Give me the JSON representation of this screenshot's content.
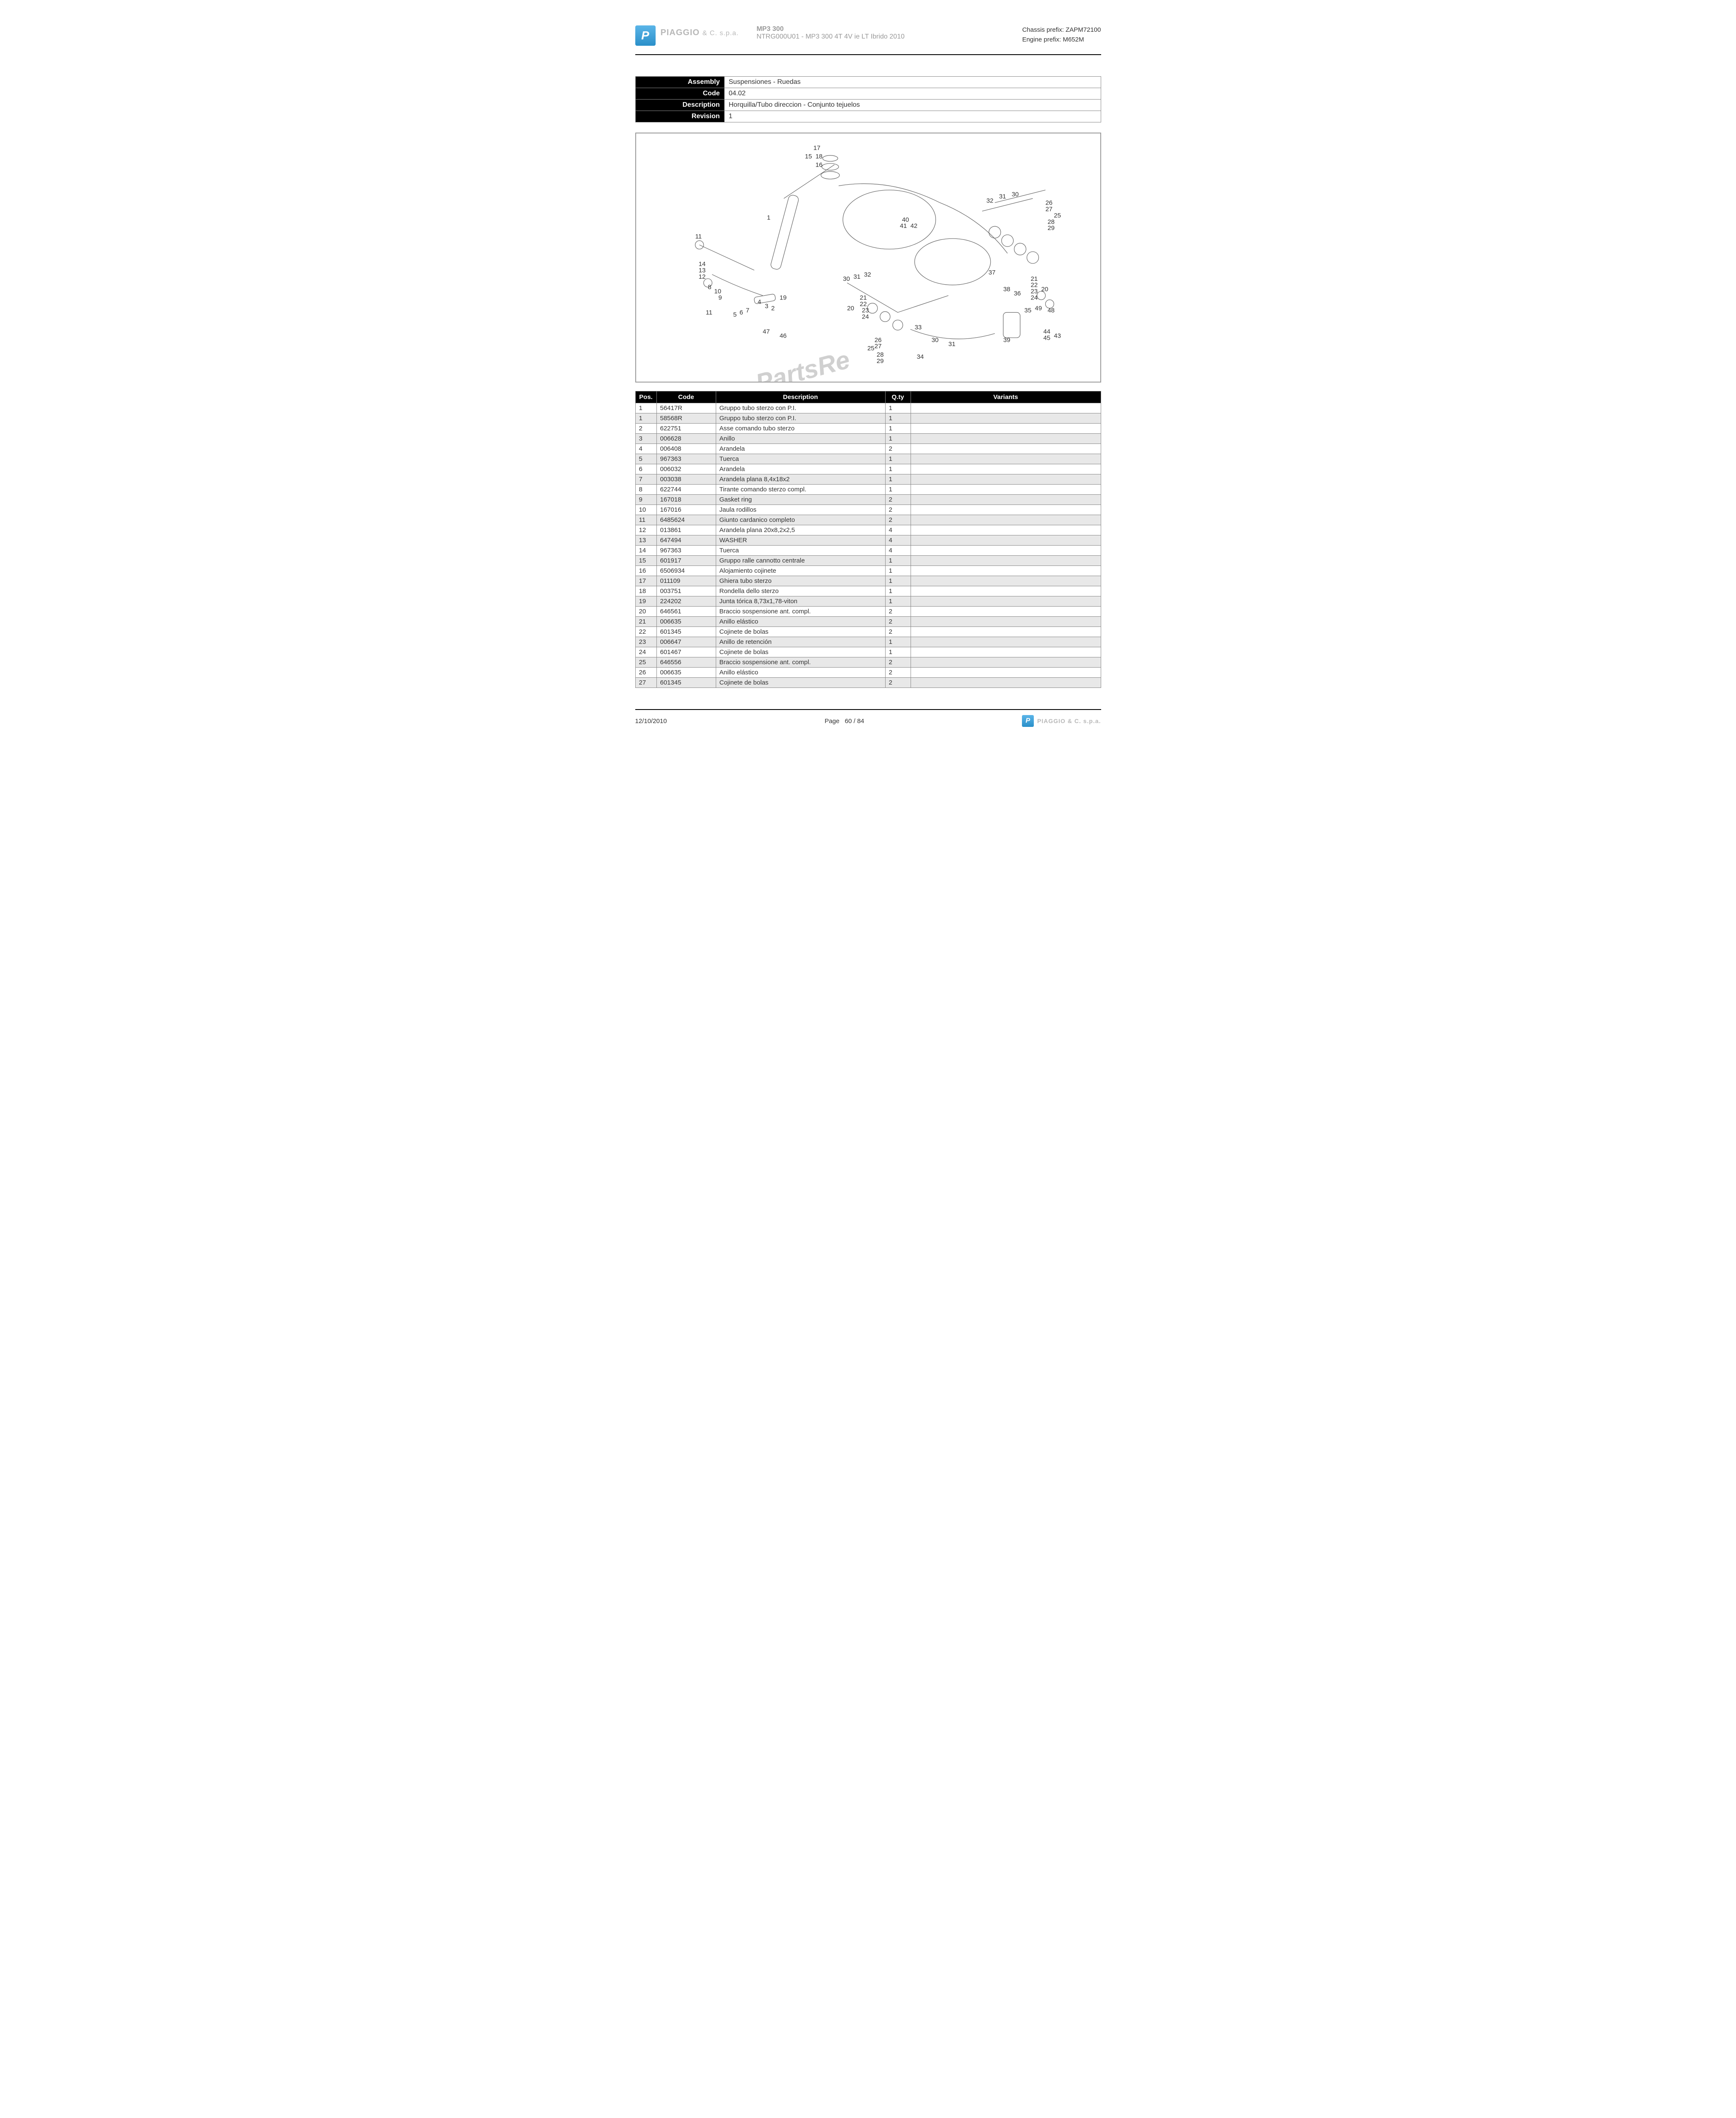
{
  "header": {
    "brand": "PIAGGIO",
    "brand_suffix": "& C. s.p.a.",
    "model_title": "MP3 300",
    "model_sub": "NTRG000U01 - MP3 300 4T 4V ie LT Ibrido 2010",
    "chassis_label": "Chassis prefix:",
    "chassis_value": "ZAPM72100",
    "engine_label": "Engine prefix:",
    "engine_value": "M652M"
  },
  "info": {
    "assembly_label": "Assembly",
    "assembly_value": "Suspensiones - Ruedas",
    "code_label": "Code",
    "code_value": "04.02",
    "description_label": "Description",
    "description_value": "Horquilla/Tubo direccion - Conjunto tejuelos",
    "revision_label": "Revision",
    "revision_value": "1"
  },
  "diagram": {
    "watermark": "PartsRe",
    "callouts": [
      "1",
      "2",
      "3",
      "4",
      "5",
      "6",
      "7",
      "8",
      "9",
      "10",
      "11",
      "12",
      "13",
      "14",
      "15",
      "16",
      "17",
      "18",
      "19",
      "20",
      "21",
      "22",
      "23",
      "24",
      "25",
      "26",
      "27",
      "28",
      "29",
      "30",
      "31",
      "32",
      "33",
      "34",
      "35",
      "36",
      "37",
      "38",
      "39",
      "40",
      "41",
      "42",
      "43",
      "44",
      "45",
      "46",
      "47",
      "48",
      "49"
    ]
  },
  "parts_table": {
    "columns": {
      "pos": "Pos.",
      "code": "Code",
      "description": "Description",
      "qty": "Q.ty",
      "variants": "Variants"
    },
    "rows": [
      {
        "pos": "1",
        "code": "56417R",
        "description": "Gruppo tubo sterzo con P.I.",
        "qty": "1",
        "variants": ""
      },
      {
        "pos": "1",
        "code": "58568R",
        "description": "Gruppo tubo sterzo con P.I.",
        "qty": "1",
        "variants": ""
      },
      {
        "pos": "2",
        "code": "622751",
        "description": "Asse comando tubo sterzo",
        "qty": "1",
        "variants": ""
      },
      {
        "pos": "3",
        "code": "006628",
        "description": "Anillo",
        "qty": "1",
        "variants": ""
      },
      {
        "pos": "4",
        "code": "006408",
        "description": "Arandela",
        "qty": "2",
        "variants": ""
      },
      {
        "pos": "5",
        "code": "967363",
        "description": "Tuerca",
        "qty": "1",
        "variants": ""
      },
      {
        "pos": "6",
        "code": "006032",
        "description": "Arandela",
        "qty": "1",
        "variants": ""
      },
      {
        "pos": "7",
        "code": "003038",
        "description": "Arandela plana 8,4x18x2",
        "qty": "1",
        "variants": ""
      },
      {
        "pos": "8",
        "code": "622744",
        "description": "Tirante comando sterzo compl.",
        "qty": "1",
        "variants": ""
      },
      {
        "pos": "9",
        "code": "167018",
        "description": "Gasket ring",
        "qty": "2",
        "variants": ""
      },
      {
        "pos": "10",
        "code": "167016",
        "description": "Jaula rodillos",
        "qty": "2",
        "variants": ""
      },
      {
        "pos": "11",
        "code": "6485624",
        "description": "Giunto cardanico completo",
        "qty": "2",
        "variants": ""
      },
      {
        "pos": "12",
        "code": "013861",
        "description": "Arandela plana 20x8,2x2,5",
        "qty": "4",
        "variants": ""
      },
      {
        "pos": "13",
        "code": "647494",
        "description": "WASHER",
        "qty": "4",
        "variants": ""
      },
      {
        "pos": "14",
        "code": "967363",
        "description": "Tuerca",
        "qty": "4",
        "variants": ""
      },
      {
        "pos": "15",
        "code": "601917",
        "description": "Gruppo ralle cannotto centrale",
        "qty": "1",
        "variants": ""
      },
      {
        "pos": "16",
        "code": "6506934",
        "description": "Alojamiento cojinete",
        "qty": "1",
        "variants": ""
      },
      {
        "pos": "17",
        "code": "011109",
        "description": "Ghiera tubo sterzo",
        "qty": "1",
        "variants": ""
      },
      {
        "pos": "18",
        "code": "003751",
        "description": "Rondella dello sterzo",
        "qty": "1",
        "variants": ""
      },
      {
        "pos": "19",
        "code": "224202",
        "description": "Junta tórica 8,73x1,78-viton",
        "qty": "1",
        "variants": ""
      },
      {
        "pos": "20",
        "code": "646561",
        "description": "Braccio sospensione ant. compl.",
        "qty": "2",
        "variants": ""
      },
      {
        "pos": "21",
        "code": "006635",
        "description": "Anillo elástico",
        "qty": "2",
        "variants": ""
      },
      {
        "pos": "22",
        "code": "601345",
        "description": "Cojinete de bolas",
        "qty": "2",
        "variants": ""
      },
      {
        "pos": "23",
        "code": "006647",
        "description": "Anillo de retención",
        "qty": "1",
        "variants": ""
      },
      {
        "pos": "24",
        "code": "601467",
        "description": "Cojinete de bolas",
        "qty": "1",
        "variants": ""
      },
      {
        "pos": "25",
        "code": "646556",
        "description": "Braccio sospensione ant. compl.",
        "qty": "2",
        "variants": ""
      },
      {
        "pos": "26",
        "code": "006635",
        "description": "Anillo elástico",
        "qty": "2",
        "variants": ""
      },
      {
        "pos": "27",
        "code": "601345",
        "description": "Cojinete de bolas",
        "qty": "2",
        "variants": ""
      }
    ]
  },
  "footer": {
    "date": "12/10/2010",
    "page_label": "Page",
    "page": "60 / 84",
    "brand": "PIAGGIO",
    "brand_suffix": "& C. s.p.a."
  },
  "colors": {
    "header_bg": "#000000",
    "alt_row": "#e8e8e8",
    "border": "#888888",
    "brand_grey": "#b8b8b8",
    "logo_top": "#5bb5e8",
    "logo_bottom": "#2a8fc9"
  }
}
